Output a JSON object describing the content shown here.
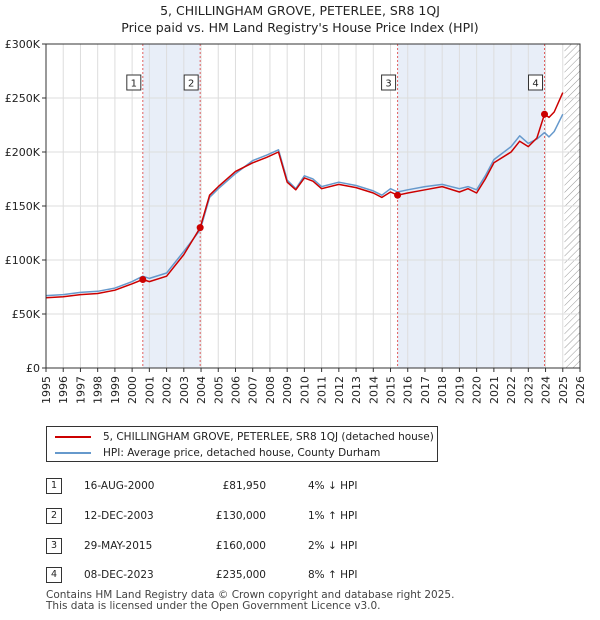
{
  "title_line1": "5, CHILLINGHAM GROVE, PETERLEE, SR8 1QJ",
  "title_line2": "Price paid vs. HM Land Registry's House Price Index (HPI)",
  "chart_data": {
    "type": "line",
    "title": "5, CHILLINGHAM GROVE, PETERLEE, SR8 1QJ — Price paid vs. HM Land Registry's House Price Index (HPI)",
    "xlim": [
      1995,
      2026
    ],
    "ylim": [
      0,
      300000
    ],
    "x_ticks": [
      "1995",
      "1996",
      "1997",
      "1998",
      "1999",
      "2000",
      "2001",
      "2002",
      "2003",
      "2004",
      "2005",
      "2006",
      "2007",
      "2008",
      "2009",
      "2010",
      "2011",
      "2012",
      "2013",
      "2014",
      "2015",
      "2016",
      "2017",
      "2018",
      "2019",
      "2020",
      "2021",
      "2022",
      "2023",
      "2024",
      "2025",
      "2026"
    ],
    "y_ticks": [
      {
        "value": 0,
        "label": "£0"
      },
      {
        "value": 50000,
        "label": "£50K"
      },
      {
        "value": 100000,
        "label": "£100K"
      },
      {
        "value": 150000,
        "label": "£150K"
      },
      {
        "value": 200000,
        "label": "£200K"
      },
      {
        "value": 250000,
        "label": "£250K"
      },
      {
        "value": 300000,
        "label": "£300K"
      }
    ],
    "grid": true,
    "shaded_intervals": [
      [
        2000.62,
        2003.95
      ],
      [
        2015.41,
        2023.94
      ]
    ],
    "forecast_hatch_from": 2025.1,
    "series": [
      {
        "name": "5, CHILLINGHAM GROVE, PETERLEE, SR8 1QJ (detached house)",
        "color": "#cc0000",
        "x": [
          1995,
          1996,
          1997,
          1998,
          1999,
          2000,
          2000.62,
          2001,
          2002,
          2003,
          2003.95,
          2004.5,
          2005,
          2006,
          2007,
          2007.8,
          2008.5,
          2009,
          2009.5,
          2010,
          2010.5,
          2011,
          2012,
          2013,
          2014,
          2014.5,
          2015,
          2015.41,
          2016,
          2017,
          2018,
          2019,
          2019.5,
          2020,
          2020.5,
          2021,
          2022,
          2022.5,
          2023,
          2023.5,
          2023.94,
          2024.2,
          2024.5,
          2025
        ],
        "y": [
          65000,
          66000,
          68000,
          69000,
          72000,
          78000,
          81950,
          80000,
          85000,
          105000,
          130000,
          160000,
          168000,
          182000,
          190000,
          195000,
          200000,
          172000,
          165000,
          176000,
          173000,
          166000,
          170000,
          167000,
          162000,
          158000,
          163000,
          160000,
          162000,
          165000,
          168000,
          163000,
          166000,
          162000,
          175000,
          190000,
          200000,
          210000,
          205000,
          213000,
          235000,
          232000,
          237000,
          255000
        ]
      },
      {
        "name": "HPI: Average price, detached house, County Durham",
        "color": "#6699cc",
        "x": [
          1995,
          1996,
          1997,
          1998,
          1999,
          2000,
          2000.62,
          2001,
          2002,
          2003,
          2003.95,
          2004.5,
          2005,
          2006,
          2007,
          2007.8,
          2008.5,
          2009,
          2009.5,
          2010,
          2010.5,
          2011,
          2012,
          2013,
          2014,
          2014.5,
          2015,
          2015.41,
          2016,
          2017,
          2018,
          2019,
          2019.5,
          2020,
          2020.5,
          2021,
          2022,
          2022.5,
          2023,
          2023.5,
          2023.94,
          2024.2,
          2024.5,
          2025
        ],
        "y": [
          67000,
          68000,
          70000,
          71000,
          74000,
          80000,
          85000,
          83000,
          88000,
          108000,
          128000,
          158000,
          166000,
          180000,
          192000,
          197000,
          202000,
          174000,
          166000,
          178000,
          175000,
          168000,
          172000,
          169000,
          164000,
          160000,
          166000,
          163000,
          165000,
          168000,
          170000,
          166000,
          168000,
          165000,
          178000,
          193000,
          205000,
          215000,
          208000,
          212000,
          218000,
          214000,
          219000,
          235000
        ]
      }
    ],
    "annotations": [
      {
        "label": "1",
        "x": 2000.62,
        "y": 81950
      },
      {
        "label": "2",
        "x": 2003.95,
        "y": 130000
      },
      {
        "label": "3",
        "x": 2015.41,
        "y": 160000
      },
      {
        "label": "4",
        "x": 2023.94,
        "y": 235000
      }
    ]
  },
  "legend": {
    "items": [
      {
        "label": "5, CHILLINGHAM GROVE, PETERLEE, SR8 1QJ (detached house)",
        "color": "#cc0000"
      },
      {
        "label": "HPI: Average price, detached house, County Durham",
        "color": "#6699cc"
      }
    ]
  },
  "transactions": [
    {
      "num": "1",
      "date": "16-AUG-2000",
      "price": "£81,950",
      "hpi": "4% ↓ HPI"
    },
    {
      "num": "2",
      "date": "12-DEC-2003",
      "price": "£130,000",
      "hpi": "1% ↑ HPI"
    },
    {
      "num": "3",
      "date": "29-MAY-2015",
      "price": "£160,000",
      "hpi": "2% ↓ HPI"
    },
    {
      "num": "4",
      "date": "08-DEC-2023",
      "price": "£235,000",
      "hpi": "8% ↑ HPI"
    }
  ],
  "footer": {
    "line1": "Contains HM Land Registry data © Crown copyright and database right 2025.",
    "line2": "This data is licensed under the Open Government Licence v3.0."
  }
}
